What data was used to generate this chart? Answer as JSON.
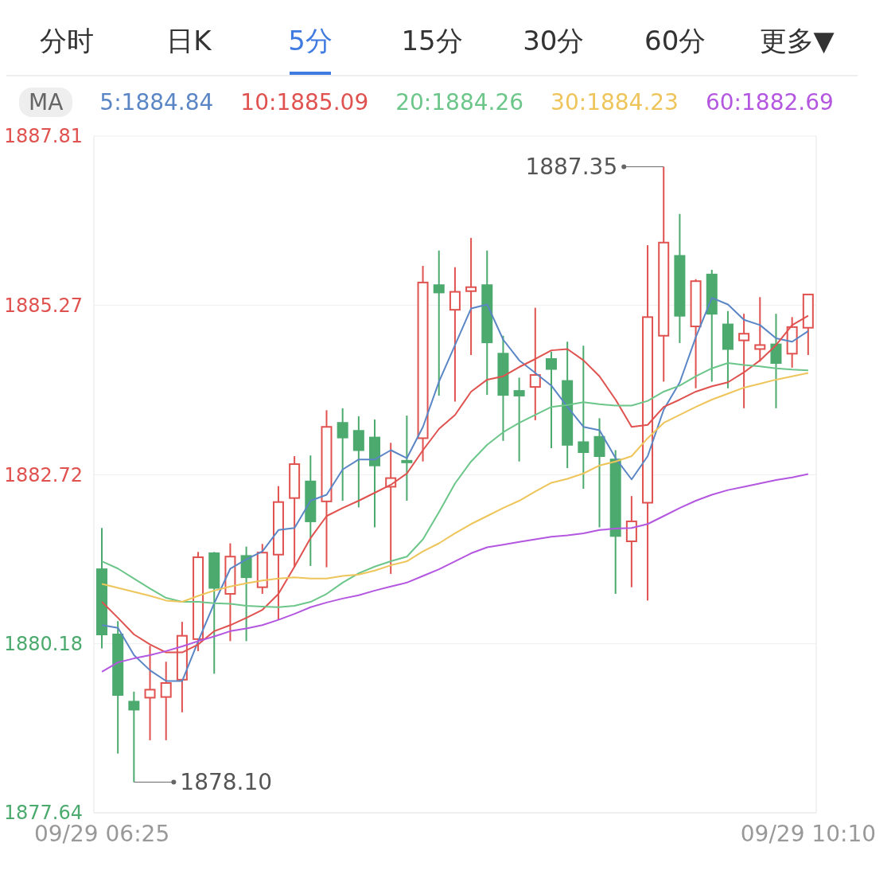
{
  "chart_data": {
    "type": "candlestick",
    "annotations": [
      "分时",
      "日K",
      "5分",
      "15分",
      "30分",
      "60分",
      "更多▼",
      "1887.35",
      "1878.10"
    ],
    "legend_title": "MA",
    "legend": "top",
    "grid": "y",
    "marker": "none",
    "categories": [
      "09/29 06:25",
      null,
      null,
      null,
      null,
      null,
      null,
      null,
      null,
      null,
      null,
      null,
      null,
      null,
      null,
      null,
      null,
      null,
      null,
      null,
      null,
      null,
      null,
      null,
      null,
      null,
      null,
      null,
      null,
      null,
      null,
      null,
      null,
      null,
      null,
      null,
      null,
      null,
      null,
      null,
      null,
      null,
      null,
      null,
      "09/29 10:10"
    ],
    "ylim": [
      1877.64,
      1887.81
    ],
    "yticks": [
      1877.64,
      1880.18,
      1882.72,
      1885.27,
      1887.81
    ],
    "ohlc": [
      [
        1881.3,
        1881.92,
        1880.11,
        1880.32
      ],
      [
        1880.32,
        1880.52,
        1878.53,
        1879.41
      ],
      [
        1879.31,
        1879.46,
        1878.1,
        1879.19
      ],
      [
        1879.37,
        1880.15,
        1878.73,
        1879.49
      ],
      [
        1879.38,
        1879.91,
        1878.73,
        1879.59
      ],
      [
        1879.64,
        1880.51,
        1879.15,
        1880.3
      ],
      [
        1880.25,
        1881.56,
        1880.07,
        1881.48
      ],
      [
        1881.54,
        1881.56,
        1879.73,
        1881.02
      ],
      [
        1880.93,
        1881.69,
        1880.22,
        1881.49
      ],
      [
        1881.5,
        1881.64,
        1880.22,
        1881.18
      ],
      [
        1881.03,
        1881.68,
        1880.93,
        1881.55
      ],
      [
        1881.52,
        1882.55,
        1880.54,
        1882.31
      ],
      [
        1882.37,
        1883.0,
        1881.33,
        1882.88
      ],
      [
        1882.62,
        1883.01,
        1881.35,
        1882.02
      ],
      [
        1882.32,
        1883.69,
        1881.33,
        1883.44
      ],
      [
        1883.5,
        1883.72,
        1882.33,
        1883.28
      ],
      [
        1883.38,
        1883.6,
        1882.23,
        1883.09
      ],
      [
        1883.28,
        1883.55,
        1881.93,
        1882.86
      ],
      [
        1882.54,
        1883.2,
        1881.23,
        1882.67
      ],
      [
        1882.93,
        1883.61,
        1882.33,
        1882.91
      ],
      [
        1883.27,
        1885.86,
        1882.92,
        1885.61
      ],
      [
        1885.57,
        1886.09,
        1883.91,
        1885.46
      ],
      [
        1885.2,
        1885.84,
        1883.82,
        1885.47
      ],
      [
        1885.48,
        1886.28,
        1884.52,
        1885.54
      ],
      [
        1885.57,
        1886.09,
        1883.92,
        1884.71
      ],
      [
        1884.54,
        1884.81,
        1883.23,
        1883.92
      ],
      [
        1883.98,
        1884.18,
        1882.92,
        1883.91
      ],
      [
        1884.04,
        1885.23,
        1883.54,
        1884.22
      ],
      [
        1884.46,
        1884.57,
        1883.12,
        1884.31
      ],
      [
        1884.13,
        1884.72,
        1882.82,
        1883.17
      ],
      [
        1883.21,
        1884.66,
        1882.51,
        1883.06
      ],
      [
        1883.29,
        1883.57,
        1881.93,
        1883.0
      ],
      [
        1882.95,
        1883.09,
        1880.93,
        1881.8
      ],
      [
        1881.72,
        1882.4,
        1881.03,
        1882.02
      ],
      [
        1882.3,
        1886.17,
        1880.83,
        1885.09
      ],
      [
        1884.81,
        1887.35,
        1884.12,
        1886.21
      ],
      [
        1886.01,
        1886.64,
        1884.7,
        1885.11
      ],
      [
        1884.95,
        1885.66,
        1884.02,
        1885.63
      ],
      [
        1885.73,
        1885.8,
        1884.12,
        1885.14
      ],
      [
        1884.98,
        1885.18,
        1884.02,
        1884.61
      ],
      [
        1884.74,
        1885.14,
        1883.72,
        1884.84
      ],
      [
        1884.61,
        1885.39,
        1884.42,
        1884.67
      ],
      [
        1884.68,
        1885.14,
        1883.72,
        1884.4
      ],
      [
        1884.54,
        1885.09,
        1884.33,
        1884.94
      ],
      [
        1884.93,
        1885.43,
        1884.52,
        1885.43
      ]
    ],
    "colors": [
      "#4caa6e",
      "#4caa6e",
      "#4caa6e",
      "#e0524f",
      "#e0524f",
      "#e0524f",
      "#e0524f",
      "#4caa6e",
      "#e0524f",
      "#4caa6e",
      "#e0524f",
      "#e0524f",
      "#e0524f",
      "#4caa6e",
      "#e0524f",
      "#4caa6e",
      "#4caa6e",
      "#4caa6e",
      "#e0524f",
      "#4caa6e",
      "#e0524f",
      "#4caa6e",
      "#e0524f",
      "#e0524f",
      "#4caa6e",
      "#4caa6e",
      "#4caa6e",
      "#e0524f",
      "#4caa6e",
      "#4caa6e",
      "#4caa6e",
      "#4caa6e",
      "#4caa6e",
      "#e0524f",
      "#e0524f",
      "#e0524f",
      "#4caa6e",
      "#e0524f",
      "#4caa6e",
      "#4caa6e",
      "#e0524f",
      "#e0524f",
      "#4caa6e",
      "#e0524f",
      "#e0524f"
    ],
    "series": [
      {
        "type": "line",
        "name": "5:1884.84",
        "color": "#5b86c5",
        "values": [
          1880.46,
          1880.42,
          1880.01,
          1879.78,
          1879.62,
          1879.62,
          1880.22,
          1880.79,
          1881.31,
          1881.45,
          1881.57,
          1881.89,
          1881.92,
          1882.33,
          1882.42,
          1882.8,
          1882.95,
          1882.95,
          1883.09,
          1882.97,
          1883.44,
          1884.12,
          1884.67,
          1885.22,
          1885.28,
          1884.75,
          1884.44,
          1884.25,
          1884.06,
          1883.74,
          1883.44,
          1883.39,
          1882.97,
          1882.65,
          1883.0,
          1883.7,
          1884.11,
          1884.79,
          1885.38,
          1885.28,
          1885.05,
          1884.97,
          1884.77,
          1884.72,
          1884.88
        ]
      },
      {
        "type": "line",
        "name": "10:1885.09",
        "color": "#e0524f",
        "values": [
          1880.81,
          1880.57,
          1880.32,
          1880.17,
          1880.05,
          1880.05,
          1880.17,
          1880.37,
          1880.46,
          1880.57,
          1880.69,
          1880.93,
          1881.34,
          1881.77,
          1882.1,
          1882.22,
          1882.33,
          1882.45,
          1882.57,
          1882.74,
          1883.09,
          1883.41,
          1883.62,
          1883.97,
          1884.15,
          1884.2,
          1884.34,
          1884.46,
          1884.59,
          1884.61,
          1884.44,
          1884.2,
          1883.85,
          1883.44,
          1883.47,
          1883.74,
          1883.85,
          1883.97,
          1884.05,
          1884.11,
          1884.26,
          1884.44,
          1884.67,
          1884.97,
          1885.11
        ]
      },
      {
        "type": "line",
        "name": "20:1884.26",
        "color": "#6cc68a",
        "values": [
          1881.42,
          1881.31,
          1881.16,
          1881.01,
          1880.87,
          1880.81,
          1880.81,
          1880.79,
          1880.78,
          1880.75,
          1880.74,
          1880.73,
          1880.75,
          1880.81,
          1880.93,
          1881.1,
          1881.24,
          1881.34,
          1881.42,
          1881.49,
          1881.75,
          1882.16,
          1882.59,
          1882.92,
          1883.17,
          1883.36,
          1883.5,
          1883.62,
          1883.74,
          1883.77,
          1883.81,
          1883.78,
          1883.76,
          1883.76,
          1883.83,
          1883.97,
          1884.06,
          1884.2,
          1884.32,
          1884.4,
          1884.37,
          1884.35,
          1884.32,
          1884.3,
          1884.29
        ]
      },
      {
        "type": "line",
        "name": "30:1884.23",
        "color": "#eec55a",
        "values": [
          1881.08,
          1881.02,
          1880.96,
          1880.9,
          1880.83,
          1880.81,
          1880.9,
          1880.98,
          1881.04,
          1881.09,
          1881.13,
          1881.16,
          1881.18,
          1881.16,
          1881.16,
          1881.2,
          1881.22,
          1881.28,
          1881.36,
          1881.42,
          1881.57,
          1881.69,
          1881.84,
          1881.98,
          1882.1,
          1882.22,
          1882.33,
          1882.47,
          1882.6,
          1882.66,
          1882.74,
          1882.86,
          1882.92,
          1883.0,
          1883.27,
          1883.5,
          1883.62,
          1883.74,
          1883.85,
          1883.94,
          1884.03,
          1884.09,
          1884.15,
          1884.2,
          1884.25
        ]
      },
      {
        "type": "line",
        "name": "60:1882.69",
        "color": "#b457e0",
        "values": [
          1879.76,
          1879.9,
          1879.96,
          1880.01,
          1880.07,
          1880.14,
          1880.22,
          1880.29,
          1880.37,
          1880.41,
          1880.46,
          1880.54,
          1880.63,
          1880.73,
          1880.8,
          1880.86,
          1880.91,
          1880.98,
          1881.04,
          1881.1,
          1881.2,
          1881.3,
          1881.42,
          1881.54,
          1881.63,
          1881.67,
          1881.71,
          1881.75,
          1881.79,
          1881.81,
          1881.84,
          1881.89,
          1881.91,
          1881.92,
          1881.98,
          1882.1,
          1882.22,
          1882.33,
          1882.42,
          1882.49,
          1882.54,
          1882.59,
          1882.64,
          1882.68,
          1882.73
        ]
      }
    ]
  }
}
